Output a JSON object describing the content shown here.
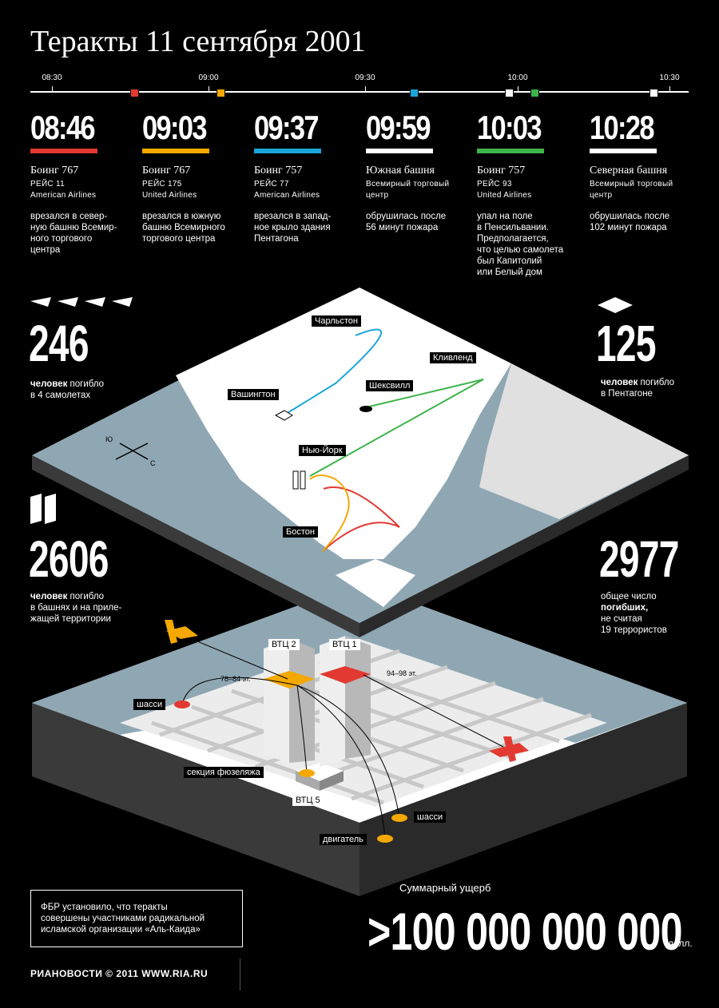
{
  "title": "Теракты 11 сентября 2001",
  "timeline": {
    "labels": [
      "08:30",
      "09:00",
      "09:30",
      "10:00",
      "10:30"
    ]
  },
  "events": [
    {
      "time": "08:46",
      "color": "#e23a32",
      "name": "Боинг 767",
      "sub1": "РЕЙС 11",
      "sub2": "American Airlines",
      "desc": [
        "врезался в север-",
        "ную башню Всемир-",
        "ного торгового",
        "центра"
      ]
    },
    {
      "time": "09:03",
      "color": "#f5a800",
      "name": "Боинг 767",
      "sub1": "РЕЙС 175",
      "sub2": "United Airlines",
      "desc": [
        "врезался в южную",
        "башню Всемирного",
        "торгового центра"
      ]
    },
    {
      "time": "09:37",
      "color": "#1aa5d8",
      "name": "Боинг 757",
      "sub1": "РЕЙС 77",
      "sub2": "American Airlines",
      "desc": [
        "врезался в запад-",
        "ное крыло здания",
        "Пентагона"
      ]
    },
    {
      "time": "09:59",
      "color": "#ffffff",
      "name": "Южная башня",
      "sub1": "Всемирный торговый",
      "sub2": "центр",
      "desc": [
        "обрушилась после",
        "56 минут пожара"
      ]
    },
    {
      "time": "10:03",
      "color": "#3db34a",
      "name": "Боинг 757",
      "sub1": "РЕЙС 93",
      "sub2": "United Airlines",
      "desc": [
        "упал на поле",
        "в Пенсильвании.",
        "Предполагается,",
        "что целью самолета",
        "был Капитолий",
        "или Белый дом"
      ]
    },
    {
      "time": "10:28",
      "color": "#ffffff",
      "name": "Северная башня",
      "sub1": "Всемирный торговый",
      "sub2": "центр",
      "desc": [
        "обрушилась после",
        "102 минут пожара"
      ]
    }
  ],
  "stats": {
    "planes": {
      "value": "246",
      "bold": "человек",
      "rest": " погибло",
      "line2": "в 4 самолетах"
    },
    "pentagon": {
      "value": "125",
      "bold": "человек",
      "rest": " погибло",
      "line2": "в Пентагоне"
    },
    "towers": {
      "value": "2606",
      "bold": "человек",
      "rest": " погибло",
      "line2": "в башнях и  на приле-",
      "line3": "жащей территории"
    },
    "total": {
      "value": "2977",
      "line1": "общее число",
      "bold": "погибших,",
      "line3": "не считая",
      "line4": "19 террористов"
    }
  },
  "map_labels": {
    "charleston": "Чарльстон",
    "cleveland": "Кливленд",
    "washington": "Вашингтон",
    "shanksville": "Шексвилл",
    "newyork": "Нью-Йорк",
    "boston": "Бостон",
    "compass_s": "Ю",
    "compass_n": "С"
  },
  "wtc_labels": {
    "wtc2": "ВТЦ 2",
    "wtc1": "ВТЦ 1",
    "wtc5": "ВТЦ 5",
    "floors2": "78–84 эт.",
    "floors1": "94–98 эт.",
    "chassis_left": "шасси",
    "fuselage": "секция фюзеляжа",
    "chassis_right": "шасси",
    "engine": "двигатель"
  },
  "note": [
    "ФБР установило, что теракты",
    "совершены участниками радикальной",
    "исламской организации «Аль-Каида»"
  ],
  "damage": {
    "label": "Суммарный ущерб",
    "value": ">100 000 000 000",
    "currency": "долл."
  },
  "footer": "РИАНОВОСТИ © 2011 WWW.RIA.RU",
  "colors": {
    "red": "#e23a32",
    "orange": "#f5a800",
    "blue": "#1aa5d8",
    "green": "#3db34a",
    "water": "#8fa7b3",
    "land": "#ffffff"
  }
}
